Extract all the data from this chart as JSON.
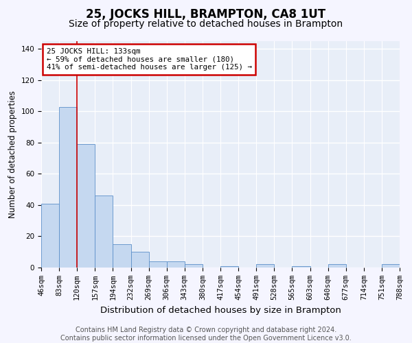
{
  "title": "25, JOCKS HILL, BRAMPTON, CA8 1UT",
  "subtitle": "Size of property relative to detached houses in Brampton",
  "xlabel": "Distribution of detached houses by size in Brampton",
  "ylabel": "Number of detached properties",
  "bar_values": [
    41,
    103,
    79,
    46,
    15,
    10,
    4,
    4,
    2,
    0,
    1,
    0,
    2,
    0,
    1,
    0,
    2,
    0,
    0,
    2
  ],
  "bin_labels": [
    "46sqm",
    "83sqm",
    "120sqm",
    "157sqm",
    "194sqm",
    "232sqm",
    "269sqm",
    "306sqm",
    "343sqm",
    "380sqm",
    "417sqm",
    "454sqm",
    "491sqm",
    "528sqm",
    "565sqm",
    "603sqm",
    "640sqm",
    "677sqm",
    "714sqm",
    "751sqm",
    "788sqm"
  ],
  "bar_color": "#c5d8f0",
  "bar_edge_color": "#5b8fc9",
  "ylim": [
    0,
    145
  ],
  "yticks": [
    0,
    20,
    40,
    60,
    80,
    100,
    120,
    140
  ],
  "property_sqm": 133,
  "annotation_text": "25 JOCKS HILL: 133sqm\n← 59% of detached houses are smaller (180)\n41% of semi-detached houses are larger (125) →",
  "annotation_box_color": "#ffffff",
  "annotation_box_edge": "#cc0000",
  "vline_color": "#cc0000",
  "footer_line1": "Contains HM Land Registry data © Crown copyright and database right 2024.",
  "footer_line2": "Contains public sector information licensed under the Open Government Licence v3.0.",
  "bg_color": "#e8eef8",
  "grid_color": "#ffffff",
  "title_fontsize": 12,
  "subtitle_fontsize": 10,
  "xlabel_fontsize": 9.5,
  "ylabel_fontsize": 8.5,
  "tick_fontsize": 7.5,
  "footer_fontsize": 7
}
